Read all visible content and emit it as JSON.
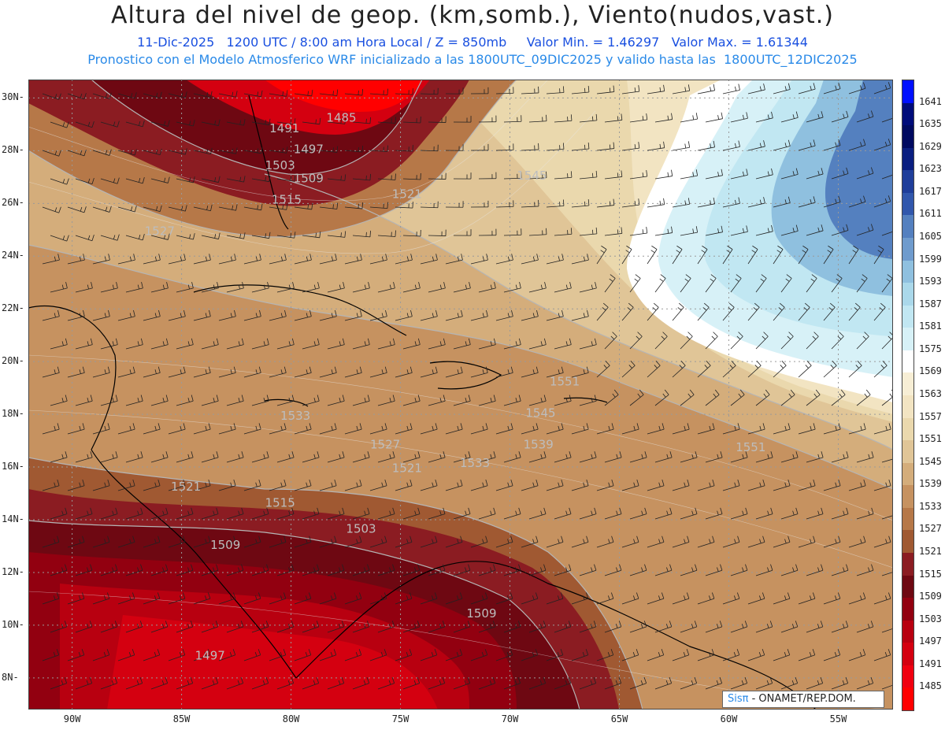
{
  "header": {
    "title": "Altura del nivel de geop. (km,somb.), Viento(nudos,vast.)",
    "subtitle_line1": "11-Dic-2025   1200 UTC / 8:00 am Hora Local / Z = 850mb     Valor Min. = 1.46297   Valor Max. = 1.61344",
    "subtitle_line2": "Pronostico con el Modelo Atmosferico WRF inicializado a las 1800UTC_09DIC2025 y valido hasta las  1800UTC_12DIC2025"
  },
  "axes": {
    "lat_labels": [
      "30N",
      "28N",
      "26N",
      "24N",
      "22N",
      "20N",
      "18N",
      "16N",
      "14N",
      "12N",
      "10N",
      "8N"
    ],
    "lon_labels": [
      "90W",
      "85W",
      "80W",
      "75W",
      "70W",
      "65W",
      "60W",
      "55W"
    ]
  },
  "contour_labels": [
    {
      "text": "1485",
      "lon": -77.7,
      "lat": 29.1
    },
    {
      "text": "1491",
      "lon": -80.3,
      "lat": 28.7
    },
    {
      "text": "1497",
      "lon": -79.2,
      "lat": 27.9
    },
    {
      "text": "1503",
      "lon": -80.5,
      "lat": 27.3
    },
    {
      "text": "1509",
      "lon": -79.2,
      "lat": 26.8
    },
    {
      "text": "1515",
      "lon": -80.2,
      "lat": 26.0
    },
    {
      "text": "1521",
      "lon": -74.7,
      "lat": 26.2
    },
    {
      "text": "1527",
      "lon": -86.0,
      "lat": 24.8
    },
    {
      "text": "1545",
      "lon": -69.0,
      "lat": 26.9
    },
    {
      "text": "1551",
      "lon": -67.5,
      "lat": 19.1
    },
    {
      "text": "1545",
      "lon": -68.6,
      "lat": 17.9
    },
    {
      "text": "1551",
      "lon": -59.0,
      "lat": 16.6
    },
    {
      "text": "1533",
      "lon": -79.8,
      "lat": 17.8
    },
    {
      "text": "1527",
      "lon": -75.7,
      "lat": 16.7
    },
    {
      "text": "1521",
      "lon": -74.7,
      "lat": 15.8
    },
    {
      "text": "1533",
      "lon": -71.6,
      "lat": 16.0
    },
    {
      "text": "1539",
      "lon": -68.7,
      "lat": 16.7
    },
    {
      "text": "1521",
      "lon": -84.8,
      "lat": 15.1
    },
    {
      "text": "1515",
      "lon": -80.5,
      "lat": 14.5
    },
    {
      "text": "1503",
      "lon": -76.8,
      "lat": 13.5
    },
    {
      "text": "1509",
      "lon": -83.0,
      "lat": 12.9
    },
    {
      "text": "1509",
      "lon": -71.3,
      "lat": 10.3
    },
    {
      "text": "1497",
      "lon": -83.7,
      "lat": 8.7
    }
  ],
  "colorbar": {
    "levels": [
      "1641",
      "1635",
      "1629",
      "1623",
      "1617",
      "1611",
      "1605",
      "1599",
      "1593",
      "1587",
      "1581",
      "1575",
      "1569",
      "1563",
      "1557",
      "1551",
      "1545",
      "1539",
      "1533",
      "1527",
      "1521",
      "1515",
      "1509",
      "1503",
      "1497",
      "1491",
      "1485"
    ],
    "colors": [
      "#0010ff",
      "#000c7a",
      "#000a60",
      "#0a1e80",
      "#1f3e9a",
      "#3157ac",
      "#5480bf",
      "#6f9bcd",
      "#8fc0df",
      "#aad8ea",
      "#c1e7f2",
      "#d7f1f7",
      "#ffffff",
      "#f7eed5",
      "#f2e4c2",
      "#ead8ad",
      "#e0c597",
      "#d4ad7b",
      "#c69260",
      "#b67848",
      "#a05932",
      "#8b1c22",
      "#6e0812",
      "#920010",
      "#b80010",
      "#d40010",
      "#f00010",
      "#ff0000"
    ]
  },
  "credit": {
    "brand": "Sisπ",
    "text": "- ONAMET/REP.DOM."
  }
}
